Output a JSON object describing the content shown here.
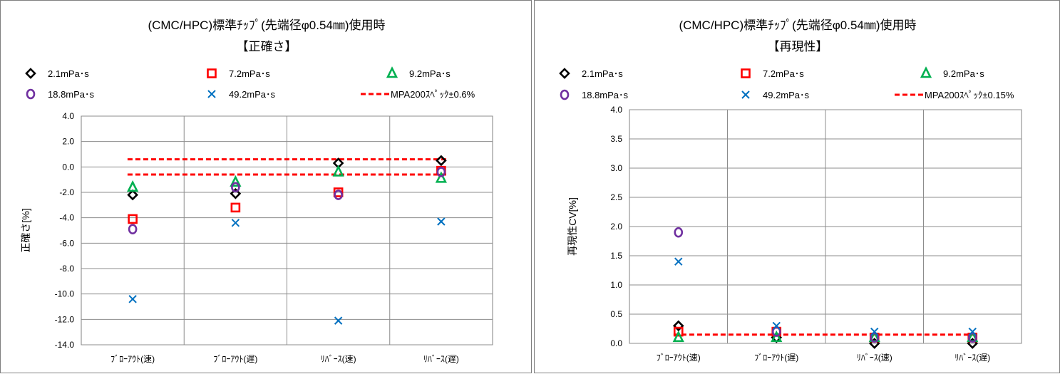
{
  "chart_data": [
    {
      "type": "scatter",
      "title": "(CMC/HPC)標準ﾁｯﾌﾟ(先端径φ0.54㎜)使用時",
      "subtitle": "【正確さ】",
      "ylabel": "正確さ[%]",
      "xlabel": "",
      "categories": [
        "ﾌﾞﾛｰｱｳﾄ(速)",
        "ﾌﾞﾛｰｱｳﾄ(遅)",
        "ﾘﾊﾞｰｽ(速)",
        "ﾘﾊﾞｰｽ(遅)"
      ],
      "ylim": [
        -14.0,
        4.0
      ],
      "yticks": [
        "4.0",
        "2.0",
        "0.0",
        "-2.0",
        "-4.0",
        "-6.0",
        "-8.0",
        "-10.0",
        "-12.0",
        "-14.0"
      ],
      "grid": true,
      "legend_position": "top",
      "series": [
        {
          "name": "2.1mPa･s",
          "marker": "diamond",
          "color": "#000000",
          "values": [
            -2.2,
            -2.1,
            0.3,
            0.5
          ]
        },
        {
          "name": "7.2mPa･s",
          "marker": "square",
          "color": "#ff0000",
          "values": [
            -4.1,
            -3.2,
            -2.0,
            -0.3
          ]
        },
        {
          "name": "9.2mPa･s",
          "marker": "triangle",
          "color": "#00b050",
          "values": [
            -1.6,
            -1.2,
            -0.4,
            -0.9
          ]
        },
        {
          "name": "18.8mPa･s",
          "marker": "circle",
          "color": "#7030a0",
          "values": [
            -4.9,
            -1.6,
            -2.2,
            -0.4
          ]
        },
        {
          "name": "49.2mPa･s",
          "marker": "x",
          "color": "#0070c0",
          "values": [
            -10.4,
            -4.4,
            -12.1,
            -4.3
          ]
        }
      ],
      "spec": {
        "name": "MPA200ｽﾍﾟｯｸ±0.6%",
        "color": "#ff0000",
        "upper": 0.6,
        "lower": -0.6
      }
    },
    {
      "type": "scatter",
      "title": "(CMC/HPC)標準ﾁｯﾌﾟ(先端径φ0.54㎜)使用時",
      "subtitle": "【再現性】",
      "ylabel": "再現性CV[%]",
      "xlabel": "",
      "categories": [
        "ﾌﾞﾛｰｱｳﾄ(速)",
        "ﾌﾞﾛｰｱｳﾄ(遅)",
        "ﾘﾊﾞｰｽ(速)",
        "ﾘﾊﾞｰｽ(遅)"
      ],
      "ylim": [
        0.0,
        4.0
      ],
      "yticks": [
        "4.0",
        "3.5",
        "3.0",
        "2.5",
        "2.0",
        "1.5",
        "1.0",
        "0.5",
        "0.0"
      ],
      "grid": true,
      "legend_position": "top",
      "series": [
        {
          "name": "2.1mPa･s",
          "marker": "diamond",
          "color": "#000000",
          "values": [
            0.3,
            0.1,
            0.0,
            0.0
          ]
        },
        {
          "name": "7.2mPa･s",
          "marker": "square",
          "color": "#ff0000",
          "values": [
            0.2,
            0.2,
            0.1,
            0.1
          ]
        },
        {
          "name": "9.2mPa･s",
          "marker": "triangle",
          "color": "#00b050",
          "values": [
            0.1,
            0.1,
            0.1,
            0.1
          ]
        },
        {
          "name": "18.8mPa･s",
          "marker": "circle",
          "color": "#7030a0",
          "values": [
            1.9,
            0.2,
            0.1,
            0.1
          ]
        },
        {
          "name": "49.2mPa･s",
          "marker": "x",
          "color": "#0070c0",
          "values": [
            1.4,
            0.3,
            0.2,
            0.2
          ]
        }
      ],
      "spec": {
        "name": "MPA200ｽﾍﾟｯｸ±0.15%",
        "color": "#ff0000",
        "upper": 0.15
      }
    }
  ]
}
